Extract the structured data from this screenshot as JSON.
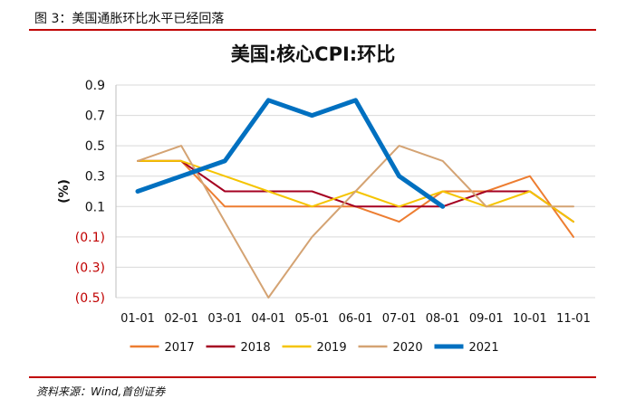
{
  "figure": {
    "header": "图 3：美国通胀环比水平已经回落",
    "source": "资料来源：Wind,首创证券"
  },
  "chart_data": {
    "type": "line",
    "title": "美国:核心CPI:环比",
    "ylabel": "(%)",
    "ylim": [
      -0.5,
      0.9
    ],
    "yticks": [
      0.9,
      0.7,
      0.5,
      0.3,
      0.1,
      -0.1,
      -0.3,
      -0.5
    ],
    "ytick_labels": [
      "0.9",
      "0.7",
      "0.5",
      "0.3",
      "0.1",
      "(0.1)",
      "(0.3)",
      "(0.5)"
    ],
    "categories": [
      "01-01",
      "02-01",
      "03-01",
      "04-01",
      "05-01",
      "06-01",
      "07-01",
      "08-01",
      "09-01",
      "10-01",
      "11-01"
    ],
    "grid": true,
    "legend": "bottom",
    "series": [
      {
        "name": "2017",
        "color": "#ed7d31",
        "width": 2,
        "values": [
          0.4,
          0.4,
          0.1,
          0.1,
          0.1,
          0.1,
          0.0,
          0.2,
          0.2,
          0.3,
          -0.1
        ]
      },
      {
        "name": "2018",
        "color": "#a50021",
        "width": 2,
        "values": [
          0.4,
          0.4,
          0.2,
          0.2,
          0.2,
          0.1,
          0.1,
          0.1,
          0.2,
          0.2,
          0.0
        ]
      },
      {
        "name": "2019",
        "color": "#f5c400",
        "width": 2,
        "values": [
          0.4,
          0.4,
          0.3,
          0.2,
          0.1,
          0.2,
          0.1,
          0.2,
          0.1,
          0.2,
          0.0
        ]
      },
      {
        "name": "2020",
        "color": "#d4a373",
        "width": 2,
        "values": [
          0.4,
          0.5,
          0.0,
          -0.5,
          -0.1,
          0.2,
          0.5,
          0.4,
          0.1,
          0.1,
          0.1
        ]
      },
      {
        "name": "2021",
        "color": "#0070c0",
        "width": 5,
        "values": [
          0.2,
          0.3,
          0.4,
          0.8,
          0.7,
          0.8,
          0.3,
          0.1,
          null,
          null,
          null
        ]
      }
    ]
  }
}
